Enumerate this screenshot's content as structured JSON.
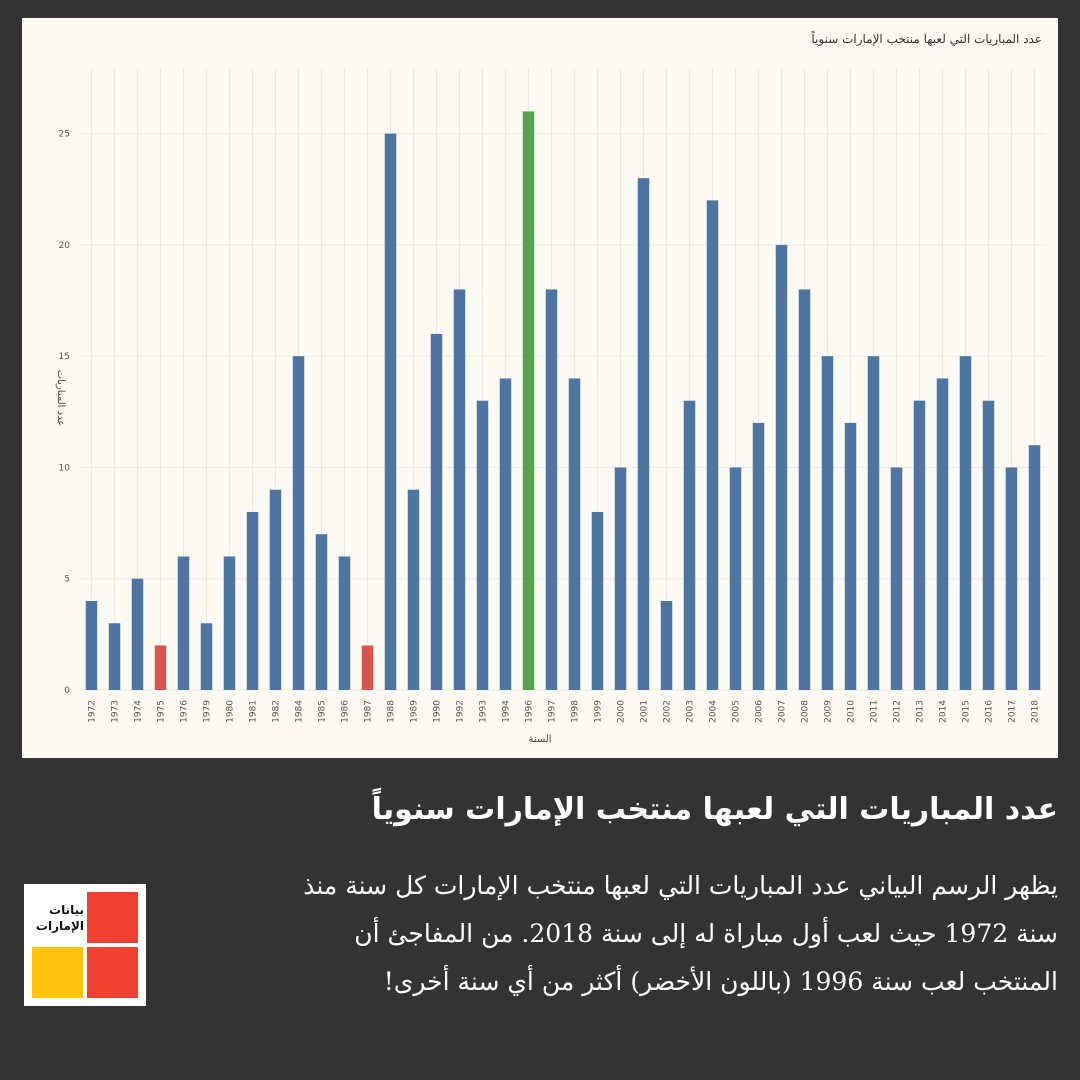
{
  "chart": {
    "title": "عدد المباريات التي لعبها منتخب الإمارات سنوياً",
    "ylabel": "عدد المباريات",
    "xlabel": "السنة"
  },
  "chart_data": {
    "type": "bar",
    "title": "عدد المباريات التي لعبها منتخب الإمارات سنوياً",
    "xlabel": "السنة",
    "ylabel": "عدد المباريات",
    "ylim": [
      0,
      27.5
    ],
    "yticks": [
      0,
      5,
      10,
      15,
      20,
      25
    ],
    "grid": true,
    "categories": [
      "1972",
      "1973",
      "1974",
      "1975",
      "1976",
      "1979",
      "1980",
      "1981",
      "1982",
      "1984",
      "1985",
      "1986",
      "1987",
      "1988",
      "1989",
      "1990",
      "1992",
      "1993",
      "1994",
      "1996",
      "1997",
      "1998",
      "1999",
      "2000",
      "2001",
      "2002",
      "2003",
      "2004",
      "2005",
      "2006",
      "2007",
      "2008",
      "2009",
      "2010",
      "2011",
      "2012",
      "2013",
      "2014",
      "2015",
      "2016",
      "2017",
      "2018"
    ],
    "values": [
      4,
      3,
      5,
      2,
      6,
      3,
      6,
      8,
      9,
      15,
      7,
      6,
      2,
      25,
      9,
      16,
      18,
      13,
      14,
      26,
      18,
      14,
      8,
      10,
      23,
      4,
      13,
      22,
      10,
      12,
      20,
      18,
      15,
      12,
      15,
      10,
      13,
      14,
      15,
      13,
      10,
      11
    ],
    "colors": {
      "default": "#4e74a2",
      "min": "#d9534f",
      "max": "#56a34c",
      "grid": "#ebe9e4",
      "panel_bg": "#fcfaf2"
    }
  },
  "caption": {
    "headline": "عدد المباريات التي لعبها منتخب الإمارات سنوياً",
    "body": "يظهر الرسم البياني عدد المباريات التي لعبها منتخب الإمارات كل سنة منذ سنة 1972 حيث لعب أول مباراة له إلى سنة 2018. من المفاجئ أن المنتخب لعب سنة 1996 (باللون الأخضر) أكثر من أي سنة أخرى!"
  },
  "logo": {
    "text": "بيانات الإمارات",
    "colors": {
      "red": "#f04032",
      "yellow": "#ffc20e"
    }
  }
}
